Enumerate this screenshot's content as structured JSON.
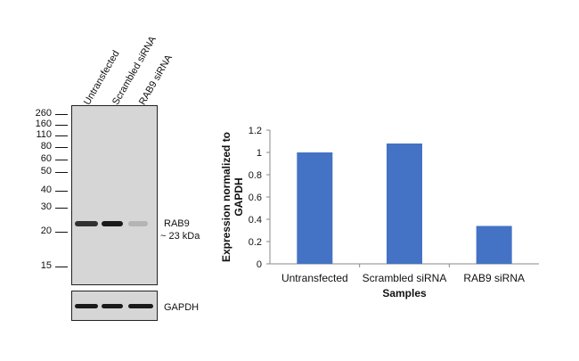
{
  "blot": {
    "lanes": [
      "Untransfected",
      "Scrambled siRNA",
      "RAB9 siRNA"
    ],
    "markers": [
      "260",
      "160",
      "110",
      "80",
      "60",
      "50",
      "40",
      "30",
      "20",
      "15"
    ],
    "target_label": "RAB9",
    "target_size": "~ 23 kDa",
    "loading_control": "GAPDH",
    "band_color": "#1a1a1a",
    "membrane_color": "#d6d6d6",
    "target_intensity": [
      1.0,
      1.08,
      0.34
    ]
  },
  "chart_data": {
    "type": "bar",
    "categories": [
      "Untransfected",
      "Scrambled siRNA",
      "RAB9 siRNA"
    ],
    "values": [
      1.0,
      1.08,
      0.34
    ],
    "title": "",
    "xlabel": "Samples",
    "ylabel": "Expression normalized to GAPDH",
    "ylim": [
      0,
      1.2
    ],
    "yticks": [
      "0",
      "0.2",
      "0.4",
      "0.6",
      "0.8",
      "1",
      "1.2"
    ],
    "bar_color": "#4472c4",
    "grid": false,
    "legend": "none"
  }
}
